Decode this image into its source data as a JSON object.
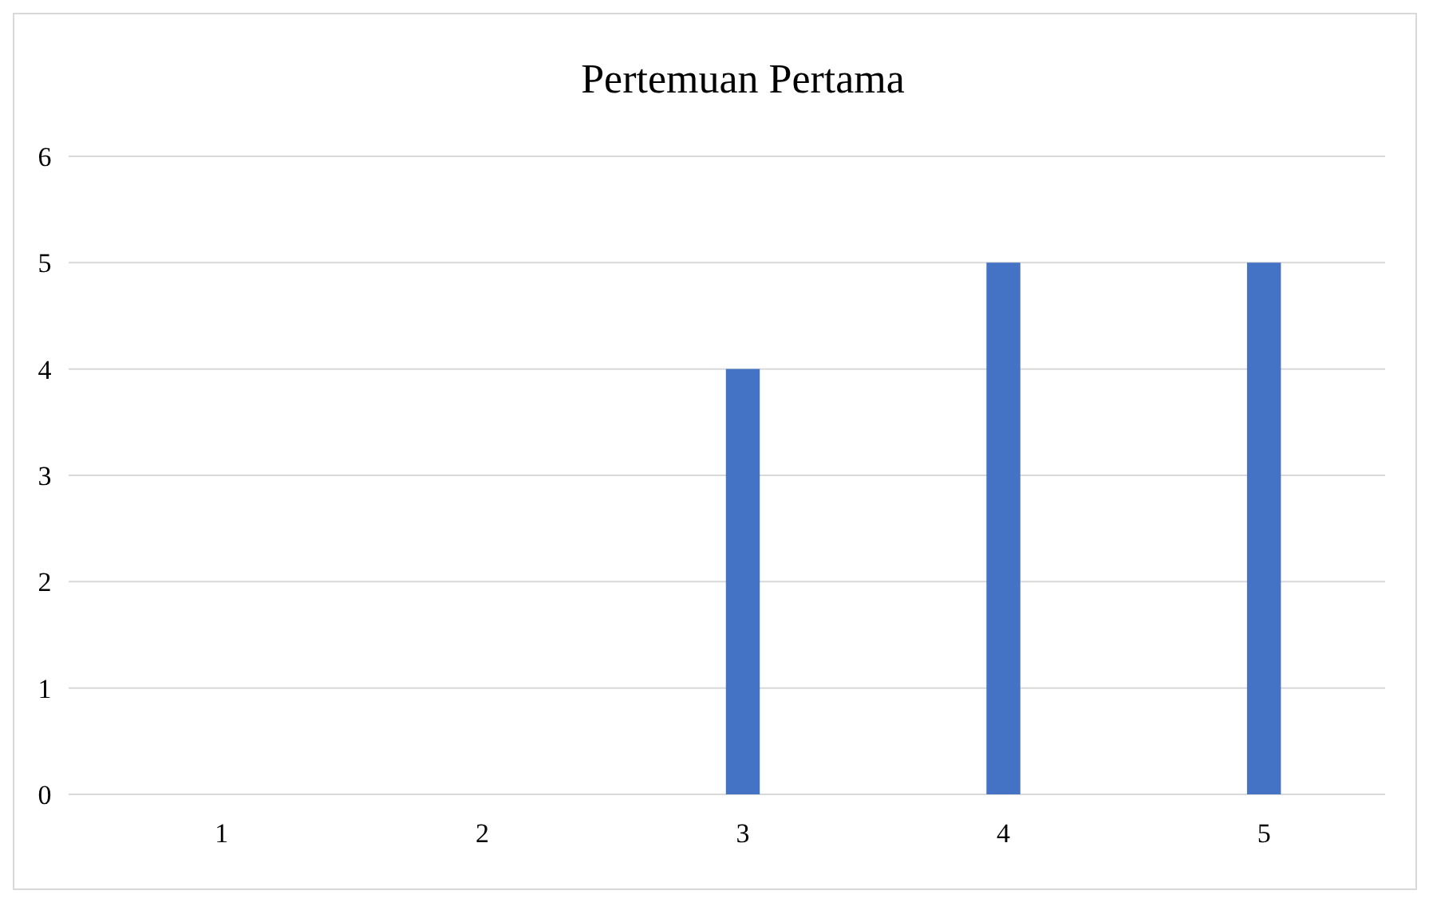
{
  "chart_data": {
    "type": "bar",
    "title": "Pertemuan Pertama",
    "categories": [
      "1",
      "2",
      "3",
      "4",
      "5"
    ],
    "values": [
      0,
      0,
      4,
      5,
      5
    ],
    "color": "#4472c4",
    "ylim": [
      0,
      6
    ],
    "yticks": [
      0,
      1,
      2,
      3,
      4,
      5,
      6
    ],
    "grid": true
  }
}
